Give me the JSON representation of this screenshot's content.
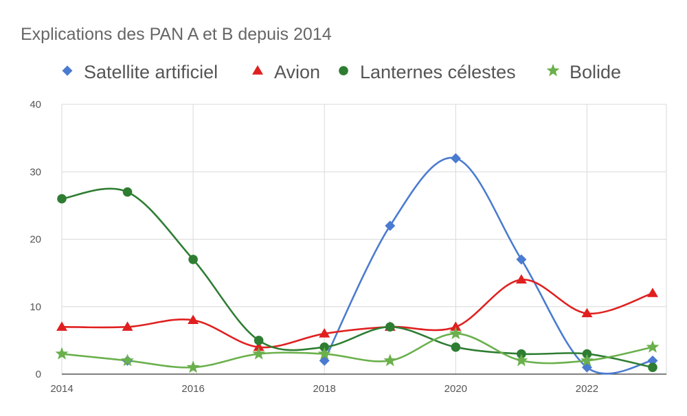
{
  "chart_data": {
    "type": "line",
    "title": "Explications des PAN A et B depuis 2014",
    "xlabel": "",
    "ylabel": "",
    "x": [
      2014,
      2015,
      2016,
      2017,
      2018,
      2019,
      2020,
      2021,
      2022,
      2023
    ],
    "xlim": [
      2014,
      2023
    ],
    "ylim": [
      0,
      40
    ],
    "xticks": [
      "2014",
      "2016",
      "2018",
      "2020",
      "2022"
    ],
    "yticks": [
      "0",
      "10",
      "20",
      "30",
      "40"
    ],
    "grid": true,
    "legend_position": "top",
    "smooth": true,
    "series": [
      {
        "name": "Satellite artificiel",
        "color": "#4a7bd0",
        "marker": "diamond",
        "values": [
          null,
          2,
          null,
          null,
          2,
          22,
          32,
          17,
          1,
          2
        ]
      },
      {
        "name": "Avion",
        "color": "#e02020",
        "marker": "triangle",
        "values": [
          7,
          7,
          8,
          4,
          6,
          7,
          7,
          14,
          9,
          12
        ]
      },
      {
        "name": "Lanternes célestes",
        "color": "#2e7d32",
        "marker": "circle",
        "values": [
          26,
          27,
          17,
          5,
          4,
          7,
          4,
          3,
          3,
          1
        ]
      },
      {
        "name": "Bolide",
        "color": "#6ab04c",
        "marker": "star",
        "values": [
          3,
          2,
          1,
          3,
          3,
          2,
          6,
          2,
          2,
          4
        ]
      }
    ]
  }
}
